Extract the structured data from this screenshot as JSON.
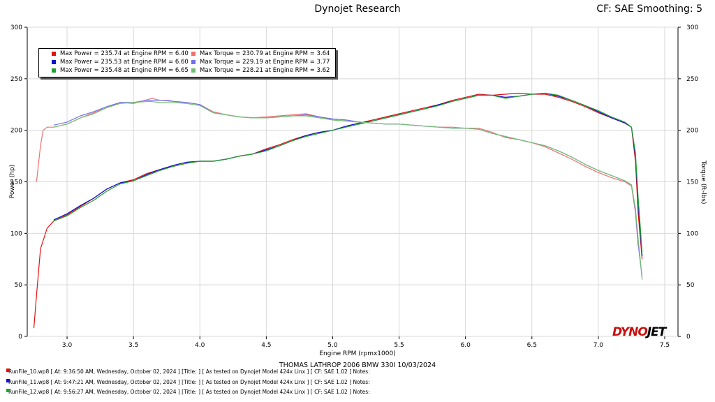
{
  "header": {
    "center_title": "Dynojet Research",
    "right_title": "CF: SAE Smoothing: 5"
  },
  "logo": {
    "part1": "DYNO",
    "part2": "JET"
  },
  "run_info": [
    {
      "text": "RunFile_10.wp8 [ At: 9:36:50 AM, Wednesday, October 02, 2024 ] [Title: ] [ As tested on Dynojet Model 424x Linx ] [ CF: SAE 1.02 ] Notes:",
      "color": "#e01010"
    },
    {
      "text": "RunFile_11.wp8 [ At: 9:47:21 AM, Wednesday, October 02, 2024 ] [Title: ] [ As tested on Dynojet Model 424x Linx ] [ CF: SAE 1.02 ] Notes:",
      "color": "#1010d0"
    },
    {
      "text": "RunFile_12.wp8 [ At: 9:56:27 AM, Wednesday, October 02, 2024 ] [Title: ] [ As tested on Dynojet Model 424x Linx ] [ CF: SAE 1.02 ] Notes:",
      "color": "#20a030"
    }
  ],
  "chart_data": {
    "type": "line",
    "title": "",
    "subtitle": "THOMAS LATHROP  2006 BMW 330I  10/03/2024",
    "xlabel": "Engine RPM (rpmx1000)",
    "ylabel_left": "Power (hp)",
    "ylabel_right": "Torque (ft-lbs)",
    "xlim": [
      2.7,
      7.6
    ],
    "ylim_left": [
      0,
      300
    ],
    "ylim_right": [
      0,
      300
    ],
    "x_ticks": [
      3.0,
      3.5,
      4.0,
      4.5,
      5.0,
      5.5,
      6.0,
      6.5,
      7.0,
      7.5
    ],
    "y_ticks": [
      0,
      50,
      100,
      150,
      200,
      250,
      300
    ],
    "grid": true,
    "legend_position": "top-left",
    "legend": [
      {
        "text": "Max Power = 235.74 at Engine RPM = 6.40",
        "color": "#e01010"
      },
      {
        "text": "Max Torque = 230.79 at Engine RPM = 3.64",
        "color": "#f07070"
      },
      {
        "text": "Max Power = 235.53 at Engine RPM = 6.60",
        "color": "#1010d0"
      },
      {
        "text": "Max Torque = 229.19 at Engine RPM = 3.77",
        "color": "#7070f0"
      },
      {
        "text": "Max Power = 235.48 at Engine RPM = 6.65",
        "color": "#20a030"
      },
      {
        "text": "Max Torque = 228.21 at Engine RPM = 3.62",
        "color": "#70c070"
      }
    ],
    "series": [
      {
        "name": "Max Power = 235.74 at Engine RPM = 6.40",
        "color": "#e01010",
        "x": [
          2.75,
          2.77,
          2.8,
          2.85,
          2.9,
          3.0,
          3.1,
          3.2,
          3.3,
          3.4,
          3.5,
          3.6,
          3.7,
          3.8,
          3.9,
          4.0,
          4.1,
          4.2,
          4.3,
          4.4,
          4.5,
          4.6,
          4.7,
          4.8,
          4.9,
          5.0,
          5.1,
          5.2,
          5.3,
          5.4,
          5.5,
          5.6,
          5.7,
          5.8,
          5.9,
          6.0,
          6.1,
          6.2,
          6.3,
          6.4,
          6.5,
          6.6,
          6.7,
          6.8,
          6.9,
          7.0,
          7.1,
          7.2,
          7.25,
          7.28,
          7.3,
          7.32,
          7.33
        ],
        "y": [
          8,
          40,
          85,
          105,
          112,
          118,
          126,
          134,
          143,
          149,
          152,
          158,
          162,
          165,
          168,
          170,
          170,
          172,
          175,
          177,
          182,
          186,
          191,
          195,
          198,
          200,
          204,
          207,
          210,
          213,
          216,
          219,
          222,
          225,
          229,
          232,
          235,
          234,
          235,
          236,
          235,
          235,
          232,
          228,
          223,
          217,
          212,
          207,
          203,
          170,
          120,
          90,
          75
        ]
      },
      {
        "name": "Max Power = 235.53 at Engine RPM = 6.60",
        "color": "#1010d0",
        "x": [
          2.9,
          3.0,
          3.1,
          3.2,
          3.3,
          3.4,
          3.5,
          3.6,
          3.7,
          3.8,
          3.9,
          4.0,
          4.1,
          4.2,
          4.3,
          4.4,
          4.5,
          4.6,
          4.7,
          4.8,
          4.9,
          5.0,
          5.1,
          5.2,
          5.3,
          5.4,
          5.5,
          5.6,
          5.7,
          5.8,
          5.9,
          6.0,
          6.1,
          6.2,
          6.3,
          6.4,
          6.5,
          6.6,
          6.7,
          6.8,
          6.9,
          7.0,
          7.1,
          7.2,
          7.25,
          7.28,
          7.3,
          7.32,
          7.33
        ],
        "y": [
          113,
          119,
          127,
          134,
          143,
          149,
          151,
          157,
          162,
          166,
          169,
          170,
          170,
          172,
          175,
          177,
          181,
          185,
          190,
          195,
          198,
          200,
          204,
          207,
          209,
          212,
          215,
          218,
          221,
          225,
          228,
          231,
          234,
          234,
          232,
          233,
          235,
          236,
          233,
          229,
          224,
          218,
          212,
          207,
          203,
          175,
          130,
          95,
          78
        ]
      },
      {
        "name": "Max Power = 235.48 at Engine RPM = 6.65",
        "color": "#20a030",
        "x": [
          2.9,
          3.0,
          3.1,
          3.2,
          3.3,
          3.4,
          3.5,
          3.6,
          3.7,
          3.8,
          3.9,
          4.0,
          4.1,
          4.2,
          4.3,
          4.4,
          4.5,
          4.6,
          4.7,
          4.8,
          4.9,
          5.0,
          5.1,
          5.2,
          5.3,
          5.4,
          5.5,
          5.6,
          5.7,
          5.8,
          5.9,
          6.0,
          6.1,
          6.2,
          6.3,
          6.4,
          6.5,
          6.6,
          6.7,
          6.8,
          6.9,
          7.0,
          7.1,
          7.2,
          7.25,
          7.28,
          7.3,
          7.32,
          7.33
        ],
        "y": [
          112,
          117,
          125,
          132,
          141,
          148,
          151,
          156,
          161,
          165,
          168,
          170,
          170,
          172,
          175,
          177,
          180,
          185,
          190,
          194,
          197,
          200,
          203,
          206,
          209,
          212,
          215,
          218,
          221,
          224,
          228,
          231,
          234,
          234,
          231,
          233,
          235,
          236,
          234,
          229,
          224,
          219,
          213,
          208,
          203,
          178,
          135,
          100,
          80
        ]
      },
      {
        "name": "Max Torque = 230.79 at Engine RPM = 3.64",
        "color": "#f07070",
        "x": [
          2.77,
          2.8,
          2.82,
          2.85,
          2.9,
          3.0,
          3.1,
          3.2,
          3.3,
          3.4,
          3.5,
          3.64,
          3.7,
          3.8,
          3.9,
          4.0,
          4.1,
          4.2,
          4.3,
          4.4,
          4.5,
          4.6,
          4.7,
          4.8,
          4.9,
          5.0,
          5.1,
          5.2,
          5.3,
          5.4,
          5.5,
          5.6,
          5.7,
          5.8,
          5.9,
          6.0,
          6.1,
          6.2,
          6.3,
          6.4,
          6.5,
          6.6,
          6.7,
          6.8,
          6.9,
          7.0,
          7.1,
          7.2,
          7.25,
          7.28,
          7.3
        ],
        "y": [
          150,
          185,
          200,
          203,
          203,
          206,
          212,
          217,
          222,
          227,
          226,
          231,
          229,
          228,
          227,
          225,
          218,
          215,
          213,
          212,
          213,
          214,
          215,
          216,
          213,
          210,
          209,
          208,
          207,
          206,
          206,
          205,
          204,
          203,
          203,
          202,
          202,
          198,
          193,
          191,
          188,
          184,
          178,
          172,
          165,
          159,
          154,
          150,
          146,
          120,
          88
        ]
      },
      {
        "name": "Max Torque = 229.19 at Engine RPM = 3.77",
        "color": "#7070f0",
        "x": [
          2.9,
          3.0,
          3.1,
          3.2,
          3.3,
          3.4,
          3.5,
          3.6,
          3.77,
          3.8,
          3.9,
          4.0,
          4.1,
          4.2,
          4.3,
          4.4,
          4.5,
          4.6,
          4.7,
          4.8,
          4.9,
          5.0,
          5.1,
          5.2,
          5.3,
          5.4,
          5.5,
          5.6,
          5.7,
          5.8,
          5.9,
          6.0,
          6.1,
          6.2,
          6.3,
          6.4,
          6.5,
          6.6,
          6.7,
          6.8,
          6.9,
          7.0,
          7.1,
          7.2,
          7.25,
          7.28,
          7.3,
          7.32,
          7.33
        ],
        "y": [
          205,
          208,
          214,
          218,
          223,
          227,
          227,
          229,
          229,
          228,
          227,
          225,
          217,
          215,
          213,
          212,
          212,
          213,
          214,
          215,
          213,
          211,
          210,
          208,
          207,
          206,
          206,
          205,
          204,
          203,
          202,
          202,
          201,
          197,
          194,
          191,
          188,
          185,
          180,
          174,
          167,
          161,
          156,
          151,
          147,
          122,
          90,
          68,
          58
        ]
      },
      {
        "name": "Max Torque = 228.21 at Engine RPM = 3.62",
        "color": "#70c070",
        "x": [
          2.9,
          3.0,
          3.1,
          3.2,
          3.3,
          3.4,
          3.5,
          3.62,
          3.7,
          3.8,
          3.9,
          4.0,
          4.1,
          4.2,
          4.3,
          4.4,
          4.5,
          4.6,
          4.7,
          4.8,
          4.9,
          5.0,
          5.1,
          5.2,
          5.3,
          5.4,
          5.5,
          5.6,
          5.7,
          5.8,
          5.9,
          6.0,
          6.1,
          6.2,
          6.3,
          6.4,
          6.5,
          6.6,
          6.7,
          6.8,
          6.9,
          7.0,
          7.1,
          7.2,
          7.25,
          7.28,
          7.3,
          7.32,
          7.33
        ],
        "y": [
          203,
          206,
          212,
          216,
          222,
          226,
          227,
          228,
          227,
          227,
          226,
          224,
          217,
          215,
          213,
          212,
          212,
          213,
          214,
          214,
          212,
          210,
          209,
          208,
          207,
          206,
          206,
          205,
          204,
          203,
          202,
          202,
          201,
          197,
          194,
          191,
          188,
          185,
          180,
          174,
          167,
          161,
          156,
          151,
          147,
          124,
          95,
          70,
          55
        ]
      }
    ]
  }
}
